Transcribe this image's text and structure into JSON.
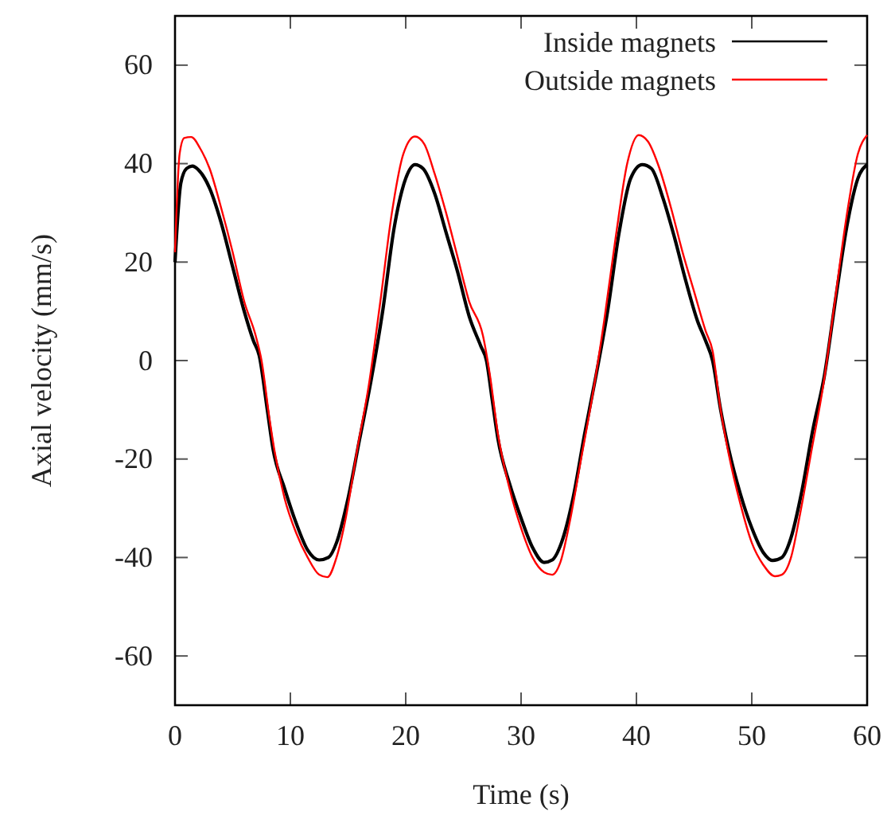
{
  "chart_data": {
    "type": "line",
    "xlabel": "Time (s)",
    "ylabel": "Axial velocity (mm/s)",
    "xlim": [
      0,
      60
    ],
    "ylim": [
      -70,
      70
    ],
    "xticks": [
      0,
      10,
      20,
      30,
      40,
      50,
      60
    ],
    "yticks": [
      -60,
      -40,
      -20,
      0,
      20,
      40,
      60
    ],
    "grid": false,
    "legend": "top right",
    "marker": "none",
    "line_style": "solid",
    "series": [
      {
        "name": "Inside magnets",
        "color": "#000000",
        "x": [
          0,
          0.5,
          1,
          1.5,
          2,
          3,
          4,
          5,
          6,
          6.8,
          7.3,
          8,
          8.5,
          9.5,
          10.5,
          11.5,
          12.5,
          13.3,
          14,
          15,
          16,
          17,
          18,
          19,
          20,
          20.8,
          21.5,
          22.5,
          23.5,
          24.5,
          25.5,
          26.5,
          27,
          27.5,
          28,
          29,
          30,
          31,
          32,
          32.7,
          33.5,
          34.5,
          35.5,
          36.5,
          37.5,
          38.5,
          39.5,
          40.5,
          41.3,
          42.3,
          43.3,
          44.3,
          45.3,
          46,
          46.6,
          47.3,
          48,
          49,
          50,
          51,
          51.8,
          52.6,
          53.4,
          54.3,
          55.3,
          56.3,
          57.3,
          58.3,
          59.2,
          60
        ],
        "values": [
          20,
          36,
          39,
          39.5,
          38.8,
          35,
          28,
          19,
          10,
          4,
          1,
          -10,
          -18,
          -26,
          -33,
          -38.5,
          -40.5,
          -40,
          -37,
          -28,
          -16,
          -4,
          10,
          27,
          37,
          39.8,
          39,
          34,
          26,
          18,
          9,
          3,
          0,
          -8,
          -16,
          -25,
          -32,
          -38,
          -41,
          -40.5,
          -37,
          -28,
          -15,
          -3,
          10,
          26,
          37,
          39.8,
          39,
          33,
          25,
          16,
          8,
          4,
          0,
          -10,
          -18,
          -27,
          -34,
          -39,
          -40.6,
          -40,
          -36,
          -27,
          -14,
          -3,
          13,
          28,
          37,
          39.8
        ]
      },
      {
        "name": "Outside magnets",
        "color": "#ff0000",
        "x": [
          0,
          0.4,
          0.8,
          1.4,
          2.2,
          3,
          4,
          5,
          6,
          7,
          7.5,
          8.2,
          8.6,
          9.5,
          10.5,
          11.5,
          12.5,
          13.2,
          14,
          14.8,
          15.8,
          16.8,
          17.8,
          18.8,
          19.8,
          20.8,
          21.6,
          22.5,
          23.5,
          24.5,
          25.5,
          26.7,
          27.3,
          28,
          29,
          30,
          31,
          32,
          32.7,
          33.4,
          34.2,
          35.2,
          36.2,
          37.2,
          38.2,
          39.2,
          40.2,
          41,
          42,
          43,
          44,
          45,
          46,
          46.6,
          47.3,
          48,
          49,
          50,
          51,
          52,
          52.6,
          53.4,
          54.2,
          55.2,
          56.2,
          57.2,
          58.2,
          59.2,
          60
        ],
        "values": [
          22,
          42,
          45.2,
          45.4,
          43,
          39,
          31,
          22,
          12,
          5,
          0,
          -12,
          -18,
          -28,
          -35,
          -40,
          -43.5,
          -44,
          -40,
          -32,
          -18,
          -5,
          12,
          30,
          42,
          45.5,
          44,
          38,
          30,
          21,
          12,
          5,
          -3,
          -15,
          -26,
          -34,
          -40,
          -43,
          -43.5,
          -41,
          -33,
          -20,
          -7,
          8,
          25,
          40,
          45.8,
          44.5,
          39,
          31,
          22,
          14,
          6,
          2,
          -10,
          -19,
          -29,
          -37,
          -41.5,
          -43.8,
          -43.5,
          -40,
          -31,
          -18,
          -5,
          12,
          29,
          42,
          45.8
        ]
      }
    ]
  }
}
